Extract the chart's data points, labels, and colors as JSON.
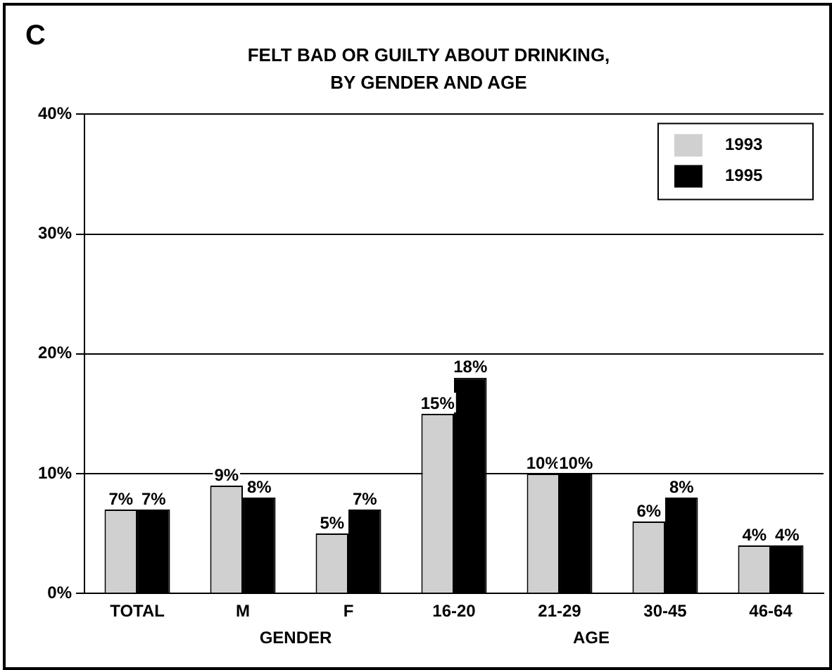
{
  "chart_data": {
    "type": "bar",
    "title": "FELT BAD OR GUILTY ABOUT DRINKING,",
    "subtitle": "BY GENDER AND AGE",
    "categories": [
      "TOTAL",
      "M",
      "F",
      "16-20",
      "21-29",
      "30-45",
      "46-64"
    ],
    "series": [
      {
        "name": "1993",
        "color": "#d0d0d0",
        "values": [
          7,
          9,
          5,
          15,
          10,
          6,
          4
        ],
        "value_labels": [
          "7%",
          "9%",
          "5%",
          "15%",
          "10%",
          "6%",
          "4%"
        ]
      },
      {
        "name": "1995",
        "color": "#000000",
        "values": [
          7,
          8,
          7,
          18,
          10,
          8,
          4
        ],
        "value_labels": [
          "7%",
          "8%",
          "7%",
          "18%",
          "10%",
          "8%",
          "4%"
        ]
      }
    ],
    "ylim": [
      0,
      40
    ],
    "yticks": [
      {
        "value": 0,
        "label": "0%"
      },
      {
        "value": 10,
        "label": "10%"
      },
      {
        "value": 20,
        "label": "20%"
      },
      {
        "value": 30,
        "label": "30%"
      },
      {
        "value": 40,
        "label": "40%"
      }
    ],
    "grid": "y",
    "legend": "top right",
    "annotations": [
      "C",
      "GENDER",
      "AGE"
    ]
  }
}
